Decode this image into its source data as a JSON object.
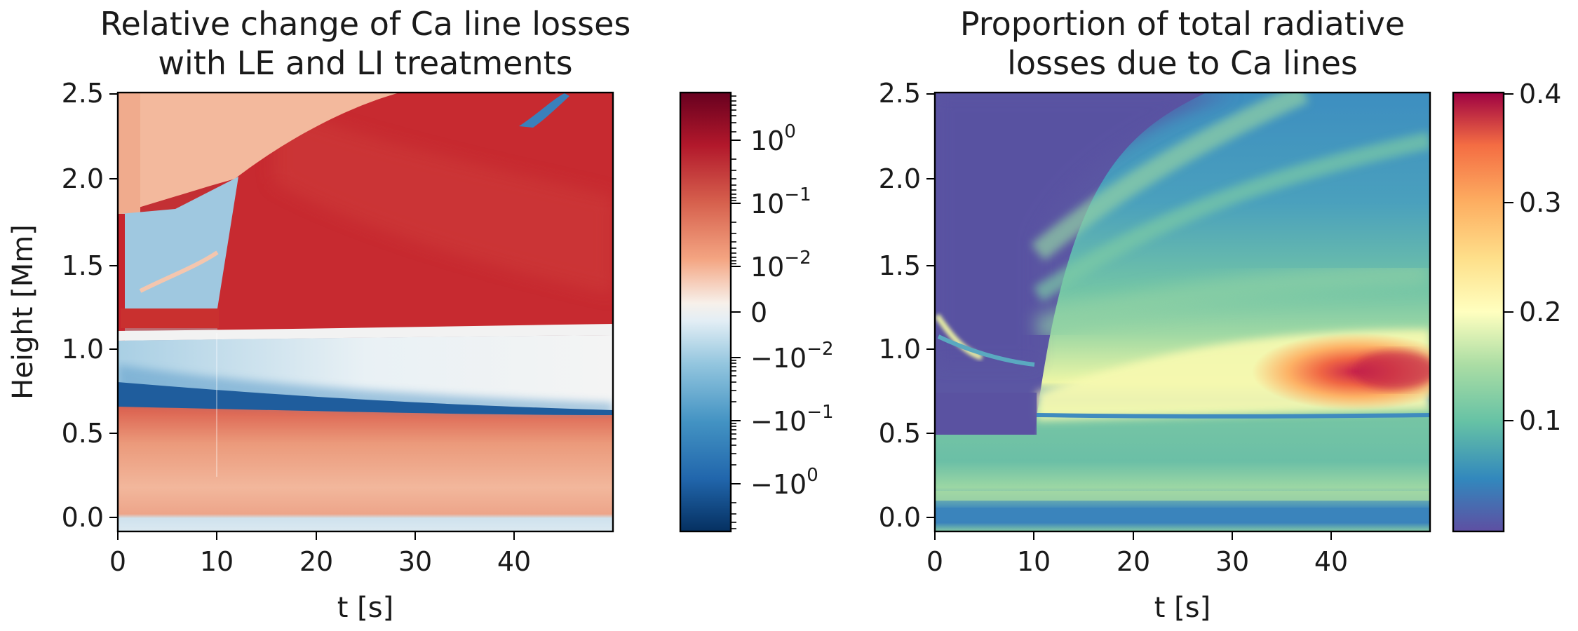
{
  "chart_data": [
    {
      "type": "heatmap",
      "title_lines": [
        "Relative change of Ca line losses",
        "with LE and LI treatments"
      ],
      "xlabel": "t [s]",
      "ylabel": "Height [Mm]",
      "xlim": [
        0,
        50
      ],
      "ylim": [
        -0.1,
        2.5
      ],
      "xticks": [
        0,
        10,
        20,
        30,
        40
      ],
      "yticks": [
        "0.0",
        "0.5",
        "1.0",
        "1.5",
        "2.0",
        "2.5"
      ],
      "colormap": "RdBu_r (symmetric log)",
      "colorbar": {
        "scale": "symlog",
        "labels": [
          {
            "base": "10",
            "exp": "0",
            "sign": ""
          },
          {
            "base": "10",
            "exp": "−1",
            "sign": ""
          },
          {
            "base": "10",
            "exp": "−2",
            "sign": ""
          },
          {
            "base": "0",
            "exp": "",
            "sign": ""
          },
          {
            "base": "10",
            "exp": "−2",
            "sign": "−"
          },
          {
            "base": "10",
            "exp": "−1",
            "sign": "−"
          },
          {
            "base": "10",
            "exp": "0",
            "sign": "−"
          }
        ]
      }
    },
    {
      "type": "heatmap",
      "title_lines": [
        "Proportion of total radiative",
        "losses due to Ca lines"
      ],
      "xlabel": "t [s]",
      "ylabel": "",
      "xlim": [
        0,
        50
      ],
      "ylim": [
        -0.1,
        2.5
      ],
      "xticks": [
        0,
        10,
        20,
        30,
        40
      ],
      "yticks": [
        "0.0",
        "0.5",
        "1.0",
        "1.5",
        "2.0",
        "2.5"
      ],
      "colormap": "Spectral_r",
      "colorbar": {
        "scale": "linear",
        "range": [
          0.0,
          0.4
        ],
        "labels": [
          "0.1",
          "0.2",
          "0.3",
          "0.4"
        ]
      }
    }
  ]
}
